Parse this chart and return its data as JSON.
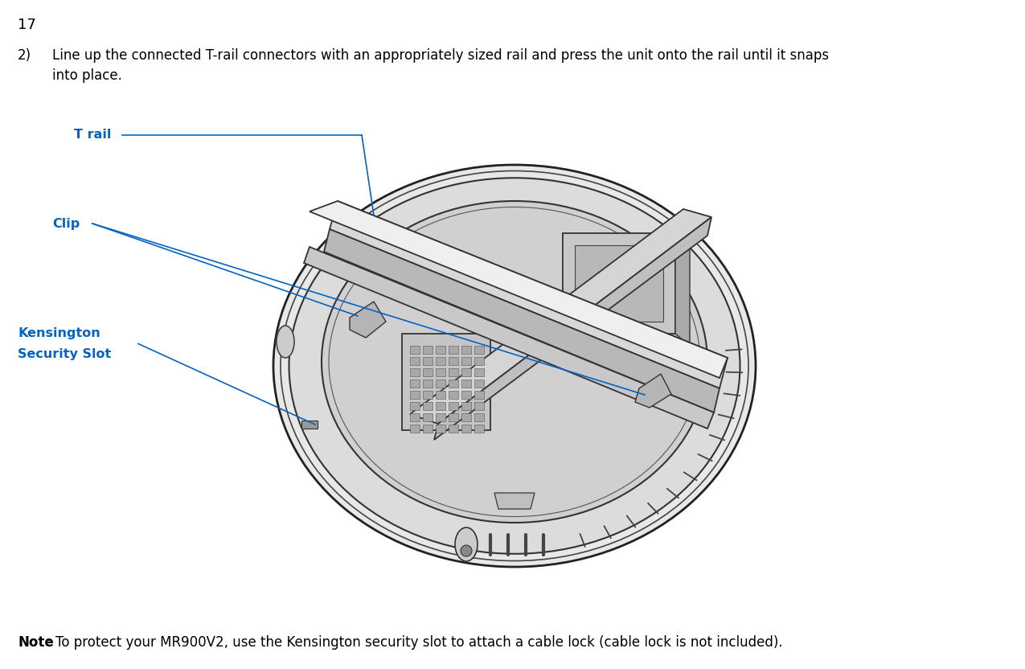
{
  "page_number": "17",
  "background_color": "#ffffff",
  "step_number": "2)",
  "step_text_line1": "Line up the connected T-rail connectors with an appropriately sized rail and press the unit onto the rail until it snaps",
  "step_text_line2": "into place.",
  "note_bold": "Note",
  "note_text": ": To protect your MR900V2, use the Kensington security slot to attach a cable lock (cable lock is not included).",
  "label_t_rail": "T rail",
  "label_clip": "Clip",
  "label_kensington_line1": "Kensington",
  "label_kensington_line2": "Security Slot",
  "label_color": "#0563C1",
  "text_color": "#000000",
  "font_size_page": 13,
  "font_size_step": 12,
  "font_size_labels": 11.5,
  "font_size_note": 12
}
